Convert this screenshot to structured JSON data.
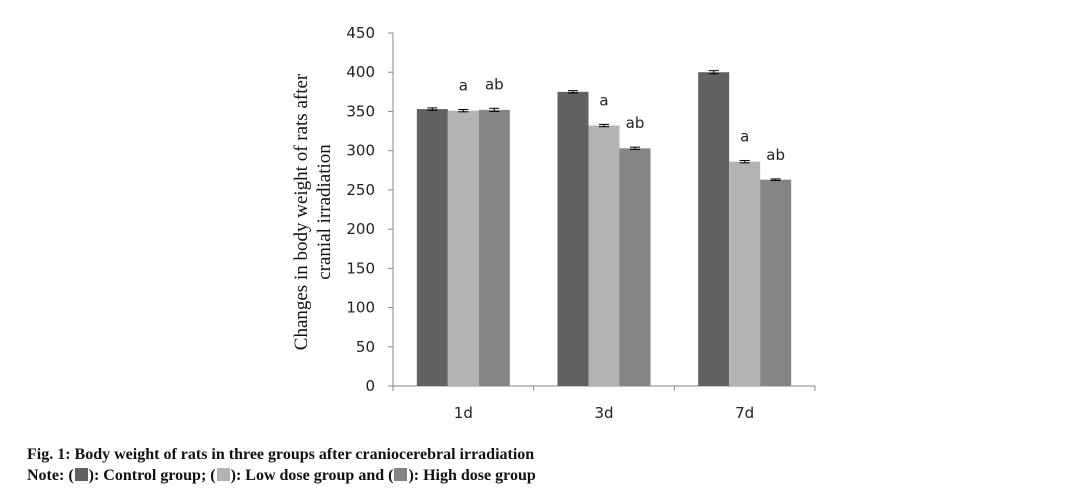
{
  "chart_data": {
    "type": "bar",
    "categories": [
      "1d",
      "3d",
      "7d"
    ],
    "series": [
      {
        "name": "Control group",
        "color": "#616161",
        "values": [
          353,
          375,
          400
        ],
        "errors": [
          1.5,
          1.5,
          2
        ],
        "labels": [
          "",
          "",
          ""
        ]
      },
      {
        "name": "Low dose group",
        "color": "#b3b3b3",
        "values": [
          351,
          332,
          286
        ],
        "errors": [
          1.5,
          1.5,
          1.5
        ],
        "labels": [
          "a",
          "a",
          "a"
        ]
      },
      {
        "name": "High dose group",
        "color": "#848484",
        "values": [
          352,
          303,
          263
        ],
        "errors": [
          2,
          1.5,
          1
        ],
        "labels": [
          "ab",
          "ab",
          "ab"
        ]
      }
    ],
    "ylabel_line1": "Changes in body weight of rats after",
    "ylabel_line2": "cranial irradiation",
    "ylim": [
      0,
      450
    ],
    "yticks": [
      "0",
      "50",
      "100",
      "150",
      "200",
      "250",
      "300",
      "350",
      "400",
      "450"
    ],
    "grid": false,
    "legend": "caption"
  },
  "caption": {
    "title": "Fig. 1: Body weight of rats in three groups after craniocerebral irradiation",
    "note_prefix": "Note: (",
    "note_control": "): Control group; (",
    "note_low": "): Low dose group and (",
    "note_high": "): High dose group"
  }
}
